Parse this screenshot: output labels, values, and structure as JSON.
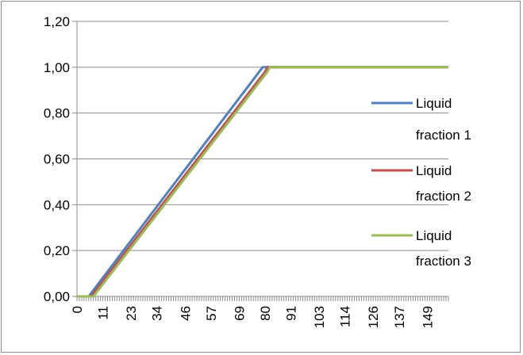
{
  "chart_data": {
    "type": "line",
    "title": "",
    "xlabel": "",
    "ylabel": "",
    "x_tick_labels": [
      "0",
      "11",
      "23",
      "34",
      "46",
      "57",
      "69",
      "80",
      "91",
      "103",
      "114",
      "126",
      "137",
      "149"
    ],
    "x_tick_values": [
      0,
      11,
      23,
      34,
      46,
      57,
      69,
      80,
      91,
      103,
      114,
      126,
      137,
      149
    ],
    "xlim": [
      0,
      158
    ],
    "y_tick_labels": [
      "0,00",
      "0,20",
      "0,40",
      "0,60",
      "0,80",
      "1,00",
      "1,20"
    ],
    "y_tick_values": [
      0,
      0.2,
      0.4,
      0.6,
      0.8,
      1.0,
      1.2
    ],
    "ylim": [
      0,
      1.2
    ],
    "grid": "horizontal",
    "legend_position": "right",
    "series": [
      {
        "name": "Liquid fraction 1",
        "color": "#4f81bd",
        "x": [
          0,
          5,
          79,
          80,
          158
        ],
        "values": [
          0,
          0,
          1.0,
          1.0,
          1.0
        ]
      },
      {
        "name": "Liquid fraction 2",
        "color": "#c0504d",
        "x": [
          0,
          6,
          80,
          81,
          158
        ],
        "values": [
          0,
          0,
          0.98,
          1.0,
          1.0
        ]
      },
      {
        "name": "Liquid fraction 3",
        "color": "#9bbb59",
        "x": [
          0,
          7,
          81,
          82,
          158
        ],
        "values": [
          0,
          0,
          0.98,
          1.0,
          1.0
        ]
      }
    ]
  }
}
